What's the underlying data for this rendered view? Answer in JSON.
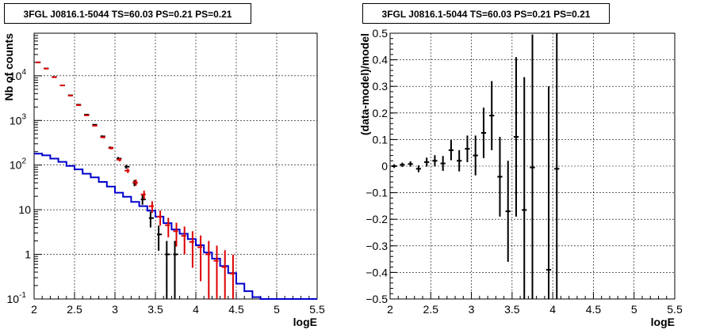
{
  "chart_data": [
    {
      "type": "step-histogram",
      "title": "3FGL J0816.1-5044 TS=60.03 PS=0.21 PS=0.21",
      "xlabel": "logE",
      "ylabel": "Nb of counts",
      "xlim": [
        2,
        5.5
      ],
      "ylim": [
        0.1,
        90000
      ],
      "yscale": "log",
      "grid": true,
      "x_ticks": [
        "2",
        "2.5",
        "3",
        "3.5",
        "4",
        "4.5",
        "5",
        "5.5"
      ],
      "y_ticks": [
        {
          "value": 0.1,
          "label": "10",
          "sup": "-1"
        },
        {
          "value": 1,
          "label": "1",
          "sup": ""
        },
        {
          "value": 10,
          "label": "10",
          "sup": ""
        },
        {
          "value": 100,
          "label": "10",
          "sup": "2"
        },
        {
          "value": 1000,
          "label": "10",
          "sup": "3"
        },
        {
          "value": 10000,
          "label": "10",
          "sup": "4"
        }
      ],
      "bin_edges": [
        2.0,
        2.1,
        2.2,
        2.3,
        2.4,
        2.5,
        2.6,
        2.7,
        2.8,
        2.9,
        3.0,
        3.1,
        3.2,
        3.3,
        3.4,
        3.5,
        3.6,
        3.7,
        3.8,
        3.9,
        4.0,
        4.1,
        4.2,
        4.3,
        4.4,
        4.5,
        4.6,
        4.7,
        4.8,
        4.9,
        5.0,
        5.1,
        5.2,
        5.3,
        5.4,
        5.5
      ],
      "series": [
        {
          "role": "data",
          "color": "#000000",
          "values": [
            20000,
            14600,
            9400,
            6100,
            3650,
            2250,
            1350,
            800,
            440,
            245,
            140,
            92,
            40,
            17,
            6.5,
            2.8,
            1,
            1,
            null,
            null,
            null,
            null,
            null,
            null,
            null
          ],
          "err_low": [
            140,
            120,
            97,
            78,
            60,
            47,
            37,
            28,
            21,
            15.6,
            11.8,
            9.5,
            6.3,
            4.1,
            2.5,
            1.6,
            1,
            1,
            null,
            null,
            null,
            null,
            null,
            null,
            null
          ],
          "err_high": [
            140,
            120,
            97,
            78,
            60,
            47,
            37,
            28,
            21,
            15.6,
            11.8,
            9.5,
            6.3,
            4.1,
            2.5,
            1.6,
            1,
            1,
            null,
            null,
            null,
            null,
            null,
            null,
            null
          ]
        },
        {
          "role": "model",
          "color": "#dd0000",
          "values": [
            20000,
            14500,
            9300,
            6100,
            3600,
            2200,
            1300,
            760,
            420,
            240,
            132,
            75,
            41,
            22,
            12,
            7,
            4.5,
            3.3,
            2.6,
            1.9,
            1.45,
            1.0,
            0.72,
            0.52,
            0.37
          ],
          "err_low": [
            140,
            120,
            96,
            78,
            60,
            47,
            36,
            27.6,
            20.5,
            15.5,
            11.5,
            8.7,
            6.4,
            4.7,
            3.5,
            2.6,
            2.1,
            1.8,
            1.6,
            1.4,
            1.2,
            1.0,
            0.62,
            0.42,
            0.27
          ],
          "err_high": [
            140,
            120,
            96,
            78,
            60,
            47,
            36,
            27.6,
            20.5,
            15.5,
            11.5,
            8.7,
            6.4,
            4.7,
            3.5,
            2.6,
            2.1,
            1.8,
            1.6,
            1.4,
            1.2,
            1.0,
            0.85,
            0.72,
            0.61
          ]
        },
        {
          "role": "background",
          "color": "#0000cc",
          "values": [
            180,
            165,
            140,
            118,
            96,
            80,
            64,
            53,
            42,
            33,
            24,
            19.5,
            15,
            12,
            9.5,
            7,
            5,
            3.6,
            2.9,
            2.2,
            1.6,
            1.1,
            0.8,
            0.55,
            0.38,
            0.22,
            0.15,
            0.11,
            0.1,
            0.1,
            0.1,
            0.1,
            0.1,
            0.1,
            0.1
          ]
        }
      ]
    },
    {
      "type": "scatter-errorbar",
      "title": "3FGL J0816.1-5044 TS=60.03 PS=0.21 PS=0.21",
      "xlabel": "logE",
      "ylabel": "(data-model)/model",
      "xlim": [
        2,
        5.5
      ],
      "ylim": [
        -0.5,
        0.5
      ],
      "grid": true,
      "x_ticks": [
        "2",
        "2.5",
        "3",
        "3.5",
        "4",
        "4.5",
        "5",
        "5.5"
      ],
      "y_ticks": [
        "-0.5",
        "-0.4",
        "-0.3",
        "-0.2",
        "-0.1",
        "0",
        "0.1",
        "0.2",
        "0.3",
        "0.4",
        "0.5"
      ],
      "points": [
        {
          "x": 2.05,
          "y": 0.0,
          "err": 0.007
        },
        {
          "x": 2.15,
          "y": 0.005,
          "err": 0.008
        },
        {
          "x": 2.25,
          "y": 0.008,
          "err": 0.01
        },
        {
          "x": 2.35,
          "y": -0.01,
          "err": 0.013
        },
        {
          "x": 2.45,
          "y": 0.015,
          "err": 0.017
        },
        {
          "x": 2.55,
          "y": 0.02,
          "err": 0.021
        },
        {
          "x": 2.65,
          "y": 0.01,
          "err": 0.028
        },
        {
          "x": 2.75,
          "y": 0.06,
          "err": 0.038
        },
        {
          "x": 2.85,
          "y": 0.02,
          "err": 0.04
        },
        {
          "x": 2.95,
          "y": 0.065,
          "err": 0.05
        },
        {
          "x": 3.05,
          "y": 0.04,
          "err": 0.075
        },
        {
          "x": 3.15,
          "y": 0.125,
          "err": 0.095
        },
        {
          "x": 3.25,
          "y": 0.19,
          "err": 0.13
        },
        {
          "x": 3.35,
          "y": -0.04,
          "err": 0.15
        },
        {
          "x": 3.45,
          "y": -0.17,
          "err": 0.19
        },
        {
          "x": 3.55,
          "y": 0.11,
          "err": 0.3
        },
        {
          "x": 3.65,
          "y": -0.165,
          "err": 0.5
        },
        {
          "x": 3.75,
          "y": -0.005,
          "err": 0.5
        },
        {
          "x": 3.95,
          "y": -0.39,
          "err": 0.69
        },
        {
          "x": 4.05,
          "y": -0.01,
          "err": 0.6
        }
      ]
    }
  ]
}
